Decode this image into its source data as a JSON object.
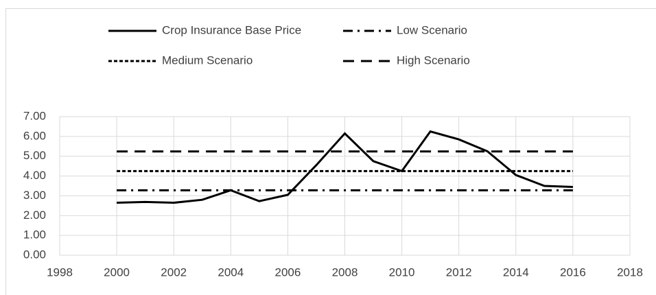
{
  "chart_data": {
    "type": "line",
    "x": [
      2000,
      2001,
      2002,
      2003,
      2004,
      2005,
      2006,
      2007,
      2008,
      2009,
      2010,
      2011,
      2012,
      2013,
      2014,
      2015,
      2016
    ],
    "series": [
      {
        "name": "Crop Insurance Base Price",
        "color": "#000000",
        "style": "solid",
        "values": [
          2.65,
          2.69,
          2.65,
          2.8,
          3.28,
          2.73,
          3.05,
          4.55,
          6.15,
          4.75,
          4.25,
          6.25,
          5.85,
          5.25,
          4.05,
          3.5,
          3.45
        ]
      },
      {
        "name": "Low Scenario",
        "color": "#000000",
        "style": "dashdot",
        "values": [
          3.28,
          3.28,
          3.28,
          3.28,
          3.28,
          3.28,
          3.28,
          3.28,
          3.28,
          3.28,
          3.28,
          3.28,
          3.28,
          3.28,
          3.28,
          3.28,
          3.28
        ]
      },
      {
        "name": "Medium Scenario",
        "color": "#000000",
        "style": "dotted",
        "values": [
          4.25,
          4.25,
          4.25,
          4.25,
          4.25,
          4.25,
          4.25,
          4.25,
          4.25,
          4.25,
          4.25,
          4.25,
          4.25,
          4.25,
          4.25,
          4.25,
          4.25
        ]
      },
      {
        "name": "High Scenario",
        "color": "#000000",
        "style": "dashed",
        "values": [
          5.24,
          5.24,
          5.24,
          5.24,
          5.24,
          5.24,
          5.24,
          5.24,
          5.24,
          5.24,
          5.24,
          5.24,
          5.24,
          5.24,
          5.24,
          5.24,
          5.24
        ]
      }
    ],
    "xlim": [
      1998,
      2018
    ],
    "xticks": [
      1998,
      2000,
      2002,
      2004,
      2006,
      2008,
      2010,
      2012,
      2014,
      2016,
      2018
    ],
    "ylim": [
      0,
      7
    ],
    "yticks": [
      {
        "value": 0,
        "label": "0.00"
      },
      {
        "value": 1,
        "label": "1.00"
      },
      {
        "value": 2,
        "label": "2.00"
      },
      {
        "value": 3,
        "label": "3.00"
      },
      {
        "value": 4,
        "label": "4.00"
      },
      {
        "value": 5,
        "label": "5.00"
      },
      {
        "value": 6,
        "label": "6.00"
      },
      {
        "value": 7,
        "label": "7.00"
      }
    ],
    "grid": true,
    "legend": "top"
  }
}
